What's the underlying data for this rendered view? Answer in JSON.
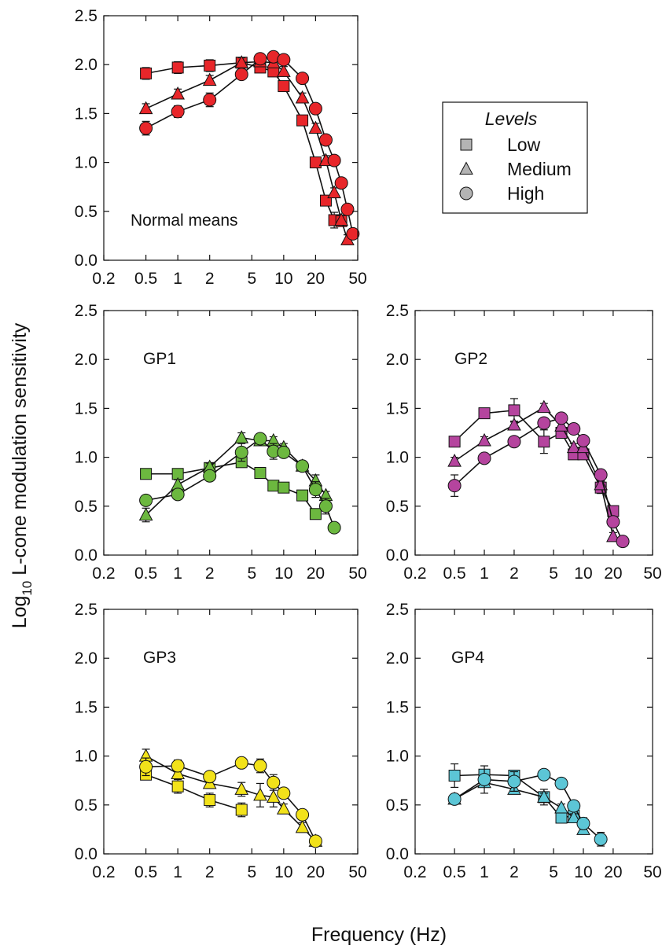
{
  "figure": {
    "ylabel_prefix": "Log",
    "ylabel_sub": "10",
    "ylabel_rest": " L-cone modulation sensitivity",
    "xlabel": "Frequency (Hz)"
  },
  "legend": {
    "title": "Levels",
    "entries": [
      {
        "label": "Low",
        "marker": "square"
      },
      {
        "label": "Medium",
        "marker": "triangle"
      },
      {
        "label": "High",
        "marker": "circle"
      }
    ]
  },
  "chart_data": [
    {
      "type": "line",
      "panel_label": "Normal means",
      "x_scale": "log",
      "xlim": [
        0.2,
        50
      ],
      "ylim": [
        0,
        2.5
      ],
      "xticks": [
        0.2,
        0.5,
        1,
        2,
        5,
        10,
        20,
        50
      ],
      "xtick_labels": [
        "0.2",
        "0.5",
        "1",
        "2",
        "5",
        "10",
        "20",
        "50"
      ],
      "yticks": [
        0,
        0.5,
        1,
        1.5,
        2,
        2.5
      ],
      "ytick_labels": [
        "0.0",
        "0.5",
        "1.0",
        "1.5",
        "2.0",
        "2.5"
      ],
      "color": "#e8262a",
      "series": [
        {
          "marker": "square",
          "x": [
            0.5,
            1,
            2,
            4,
            6,
            8,
            10,
            15,
            20,
            25,
            30,
            35
          ],
          "y": [
            1.91,
            1.97,
            1.99,
            2.02,
            1.97,
            1.93,
            1.78,
            1.43,
            1.0,
            0.61,
            0.41,
            0.4
          ],
          "err": [
            0.06,
            0.06,
            0.06,
            0.05,
            0.05,
            0.05,
            0.05,
            0.05,
            0.05,
            0.05,
            0.08,
            0.05
          ]
        },
        {
          "marker": "triangle",
          "x": [
            0.5,
            1,
            2,
            4,
            6,
            8,
            10,
            15,
            20,
            25,
            30,
            35,
            40
          ],
          "y": [
            1.55,
            1.7,
            1.84,
            2.02,
            2.03,
            2.02,
            1.93,
            1.66,
            1.35,
            1.02,
            0.69,
            0.41,
            0.21
          ],
          "err": [
            0.05,
            0.05,
            0.05,
            0.05,
            0.05,
            0.05,
            0.05,
            0.05,
            0.05,
            0.05,
            0.05,
            0.05,
            0.05
          ]
        },
        {
          "marker": "circle",
          "x": [
            0.5,
            1,
            2,
            4,
            6,
            8,
            10,
            15,
            20,
            25,
            30,
            35,
            40,
            45
          ],
          "y": [
            1.35,
            1.52,
            1.64,
            1.9,
            2.06,
            2.08,
            2.05,
            1.86,
            1.55,
            1.23,
            1.02,
            0.79,
            0.52,
            0.27
          ],
          "err": [
            0.07,
            0.06,
            0.07,
            0.05,
            0.05,
            0.05,
            0.05,
            0.04,
            0.04,
            0.04,
            0.04,
            0.04,
            0.04,
            0.04
          ]
        }
      ]
    },
    {
      "type": "line",
      "panel_label": "GP1",
      "x_scale": "log",
      "xlim": [
        0.2,
        50
      ],
      "ylim": [
        0,
        2.5
      ],
      "xticks": [
        0.2,
        0.5,
        1,
        2,
        5,
        10,
        20,
        50
      ],
      "xtick_labels": [
        "0.2",
        "0.5",
        "1",
        "2",
        "5",
        "10",
        "20",
        "50"
      ],
      "yticks": [
        0,
        0.5,
        1,
        1.5,
        2,
        2.5
      ],
      "ytick_labels": [
        "0.0",
        "0.5",
        "1.0",
        "1.5",
        "2.0",
        "2.5"
      ],
      "color": "#6cb83f",
      "series": [
        {
          "marker": "square",
          "x": [
            0.5,
            1,
            2,
            4,
            6,
            8,
            10,
            15,
            20
          ],
          "y": [
            0.83,
            0.83,
            0.89,
            0.95,
            0.84,
            0.71,
            0.69,
            0.61,
            0.42
          ],
          "err": [
            0.03,
            0.03,
            0.03,
            0.05,
            0.03,
            0.03,
            0.03,
            0.03,
            0.03
          ]
        },
        {
          "marker": "triangle",
          "x": [
            0.5,
            1,
            2,
            4,
            6,
            8,
            10,
            15,
            20,
            25
          ],
          "y": [
            0.41,
            0.72,
            0.9,
            1.2,
            1.17,
            1.17,
            1.1,
            0.91,
            0.76,
            0.61
          ],
          "err": [
            0.07,
            0.05,
            0.04,
            0.05,
            0.04,
            0.04,
            0.04,
            0.04,
            0.06,
            0.04
          ]
        },
        {
          "marker": "circle",
          "x": [
            0.5,
            1,
            2,
            4,
            6,
            8,
            10,
            15,
            20,
            25,
            30
          ],
          "y": [
            0.56,
            0.62,
            0.81,
            1.05,
            1.19,
            1.06,
            1.05,
            0.91,
            0.67,
            0.5,
            0.28
          ],
          "err": [
            0.03,
            0.04,
            0.04,
            0.09,
            0.03,
            0.08,
            0.04,
            0.05,
            0.08,
            0.08,
            0.05
          ]
        }
      ]
    },
    {
      "type": "line",
      "panel_label": "GP2",
      "x_scale": "log",
      "xlim": [
        0.2,
        50
      ],
      "ylim": [
        0,
        2.5
      ],
      "xticks": [
        0.2,
        0.5,
        1,
        2,
        5,
        10,
        20,
        50
      ],
      "xtick_labels": [
        "0.2",
        "0.5",
        "1",
        "2",
        "5",
        "10",
        "20",
        "50"
      ],
      "yticks": [
        0,
        0.5,
        1,
        1.5,
        2,
        2.5
      ],
      "ytick_labels": [
        "0.0",
        "0.5",
        "1.0",
        "1.5",
        "2.0",
        "2.5"
      ],
      "color": "#b5449e",
      "series": [
        {
          "marker": "square",
          "x": [
            0.5,
            1,
            2,
            4,
            6,
            8,
            10,
            15,
            20
          ],
          "y": [
            1.16,
            1.45,
            1.48,
            1.16,
            1.25,
            1.03,
            1.03,
            0.69,
            0.45
          ],
          "err": [
            0.04,
            0.04,
            0.12,
            0.12,
            0.04,
            0.04,
            0.04,
            0.06,
            0.04
          ]
        },
        {
          "marker": "triangle",
          "x": [
            0.5,
            1,
            2,
            4,
            6,
            8,
            10,
            15,
            20
          ],
          "y": [
            0.96,
            1.17,
            1.33,
            1.51,
            1.32,
            1.1,
            1.1,
            0.72,
            0.19
          ],
          "err": [
            0.04,
            0.04,
            0.04,
            0.04,
            0.04,
            0.04,
            0.04,
            0.04,
            0.04
          ]
        },
        {
          "marker": "circle",
          "x": [
            0.5,
            1,
            2,
            4,
            6,
            8,
            10,
            15,
            20,
            25
          ],
          "y": [
            0.71,
            0.99,
            1.16,
            1.35,
            1.4,
            1.29,
            1.17,
            0.82,
            0.34,
            0.14
          ],
          "err": [
            0.11,
            0.04,
            0.04,
            0.04,
            0.05,
            0.04,
            0.04,
            0.04,
            0.04,
            0.03
          ]
        }
      ]
    },
    {
      "type": "line",
      "panel_label": "GP3",
      "x_scale": "log",
      "xlim": [
        0.2,
        50
      ],
      "ylim": [
        0,
        2.5
      ],
      "xticks": [
        0.2,
        0.5,
        1,
        2,
        5,
        10,
        20,
        50
      ],
      "xtick_labels": [
        "0.2",
        "0.5",
        "1",
        "2",
        "5",
        "10",
        "20",
        "50"
      ],
      "yticks": [
        0,
        0.5,
        1,
        1.5,
        2,
        2.5
      ],
      "ytick_labels": [
        "0.0",
        "0.5",
        "1.0",
        "1.5",
        "2.0",
        "2.5"
      ],
      "color": "#f2e21a",
      "series": [
        {
          "marker": "square",
          "x": [
            0.5,
            1,
            2,
            4
          ],
          "y": [
            0.81,
            0.69,
            0.55,
            0.45
          ],
          "err": [
            0.05,
            0.07,
            0.07,
            0.07
          ]
        },
        {
          "marker": "triangle",
          "x": [
            0.5,
            1,
            2,
            4,
            6,
            8,
            10,
            15,
            20
          ],
          "y": [
            1.0,
            0.82,
            0.72,
            0.66,
            0.6,
            0.58,
            0.46,
            0.27,
            0.13
          ],
          "err": [
            0.07,
            0.06,
            0.05,
            0.07,
            0.12,
            0.1,
            0.05,
            0.05,
            0.04
          ]
        },
        {
          "marker": "circle",
          "x": [
            0.5,
            1,
            2,
            4,
            6,
            8,
            10,
            15,
            20
          ],
          "y": [
            0.89,
            0.9,
            0.79,
            0.93,
            0.9,
            0.73,
            0.62,
            0.4,
            0.13
          ],
          "err": [
            0.09,
            0.06,
            0.05,
            0.03,
            0.07,
            0.08,
            0.05,
            0.05,
            0.04
          ]
        }
      ]
    },
    {
      "type": "line",
      "panel_label": "GP4",
      "x_scale": "log",
      "xlim": [
        0.2,
        50
      ],
      "ylim": [
        0,
        2.5
      ],
      "xticks": [
        0.2,
        0.5,
        1,
        2,
        5,
        10,
        20,
        50
      ],
      "xtick_labels": [
        "0.2",
        "0.5",
        "1",
        "2",
        "5",
        "10",
        "20",
        "50"
      ],
      "yticks": [
        0,
        0.5,
        1,
        1.5,
        2,
        2.5
      ],
      "ytick_labels": [
        "0.0",
        "0.5",
        "1.0",
        "1.5",
        "2.0",
        "2.5"
      ],
      "color": "#5cc6d6",
      "series": [
        {
          "marker": "square",
          "x": [
            0.5,
            1,
            2,
            4,
            6,
            8
          ],
          "y": [
            0.8,
            0.81,
            0.8,
            0.58,
            0.37,
            0.39
          ],
          "err": [
            0.12,
            0.04,
            0.04,
            0.08,
            0.04,
            0.04
          ]
        },
        {
          "marker": "triangle",
          "x": [
            0.5,
            1,
            2,
            4,
            6,
            8,
            10
          ],
          "y": [
            0.56,
            0.73,
            0.66,
            0.58,
            0.47,
            0.37,
            0.25
          ],
          "err": [
            0.04,
            0.04,
            0.04,
            0.04,
            0.04,
            0.04,
            0.04
          ]
        },
        {
          "marker": "circle",
          "x": [
            0.5,
            1,
            2,
            4,
            6,
            8,
            10,
            15
          ],
          "y": [
            0.56,
            0.76,
            0.74,
            0.81,
            0.72,
            0.49,
            0.31,
            0.15
          ],
          "err": [
            0.04,
            0.14,
            0.1,
            0.04,
            0.04,
            0.05,
            0.06,
            0.07
          ]
        }
      ]
    }
  ]
}
